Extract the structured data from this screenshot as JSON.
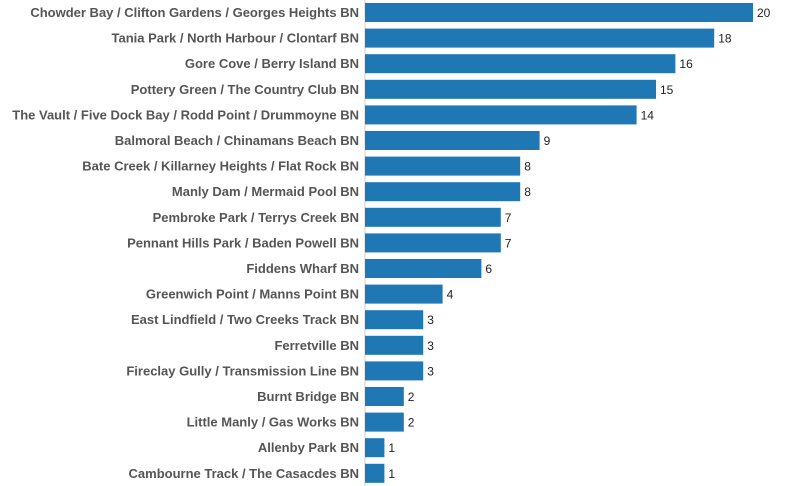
{
  "chart_data": {
    "type": "bar",
    "orientation": "horizontal",
    "title": "",
    "xlabel": "",
    "ylabel": "",
    "categories": [
      "Chowder Bay / Clifton Gardens / Georges Heights BN",
      "Tania Park / North Harbour / Clontarf BN",
      "Gore Cove / Berry Island BN",
      "Pottery Green / The Country Club BN",
      "The Vault / Five Dock Bay / Rodd Point / Drummoyne BN",
      "Balmoral Beach / Chinamans Beach BN",
      "Bate Creek / Killarney Heights / Flat Rock BN",
      "Manly Dam / Mermaid Pool BN",
      "Pembroke Park / Terrys Creek BN",
      "Pennant Hills Park / Baden Powell BN",
      "Fiddens Wharf BN",
      "Greenwich Point / Manns Point BN",
      "East Lindfield / Two Creeks Track BN",
      "Ferretville BN",
      "Fireclay Gully / Transmission Line BN",
      "Burnt Bridge BN",
      "Little Manly / Gas Works BN",
      "Allenby Park BN",
      "Cambourne Track / The Casacdes BN"
    ],
    "values": [
      20,
      18,
      16,
      15,
      14,
      9,
      8,
      8,
      7,
      7,
      6,
      4,
      3,
      3,
      3,
      2,
      2,
      1,
      1
    ],
    "data_labels": true,
    "grid": false,
    "legend": "none",
    "xlim": [
      0,
      20
    ],
    "colors": {
      "bar": "#1f77b4",
      "label_text": "#555555",
      "value_text": "#222222",
      "axis_line": "#cccccc"
    }
  }
}
